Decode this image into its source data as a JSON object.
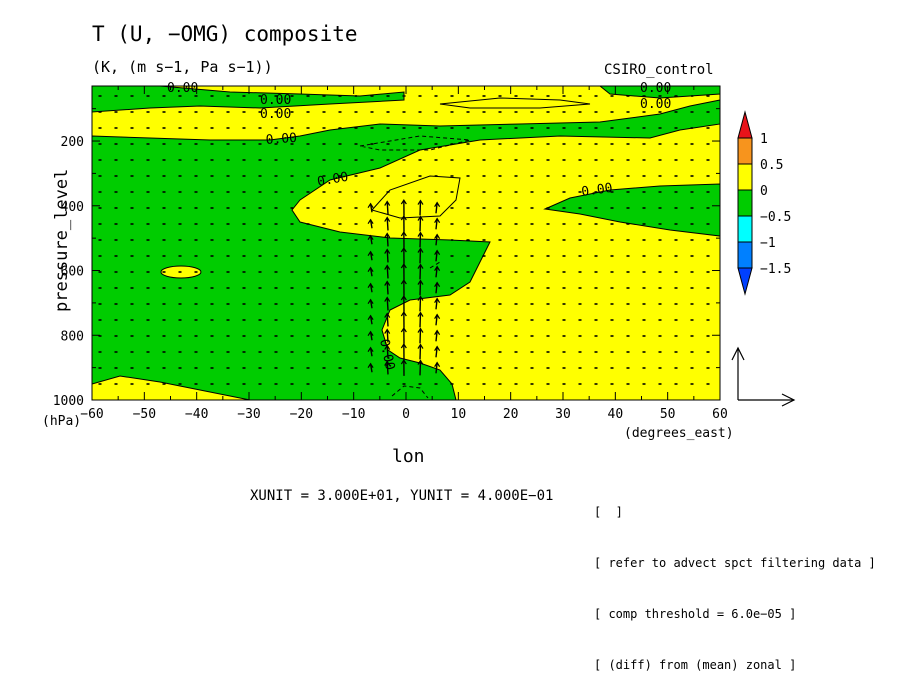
{
  "chart_data": {
    "type": "contour+vector",
    "title": "T (U, −OMG) composite",
    "subtitle": "(K, (m s−1, Pa s−1))",
    "dataset": "CSIRO_control",
    "xlabel": "lon",
    "xunits": "(degrees_east)",
    "ylabel": "pressure_level",
    "yunits": "(hPa)",
    "xlim": [
      -60,
      60
    ],
    "ylim": [
      1000,
      30
    ],
    "x_ticks": [
      "−60",
      "−50",
      "−40",
      "−30",
      "−20",
      "−10",
      "0",
      "10",
      "20",
      "30",
      "40",
      "50",
      "60"
    ],
    "y_ticks": [
      "200",
      "400",
      "600",
      "800",
      "1000"
    ],
    "contour_label": "0.00",
    "colorbar": {
      "levels": [
        "1",
        "0.5",
        "0",
        "−0.5",
        "−1",
        "−1.5"
      ],
      "colors": [
        "#e8131a",
        "#f7941d",
        "#ffff00",
        "#00cc00",
        "#00ffff",
        "#0080ff",
        "#0040ff"
      ]
    },
    "vector_units": "XUNIT = 3.000E+01, YUNIT = 4.000E−01",
    "notes": [
      "[  ]",
      "[ refer to advect spct filtering data ]",
      "[ comp threshold = 6.0e−05 ]",
      "[ (diff) from (mean) zonal ]"
    ],
    "fill_colors": {
      "positive": "#ffff00",
      "negative": "#00cc00"
    }
  }
}
